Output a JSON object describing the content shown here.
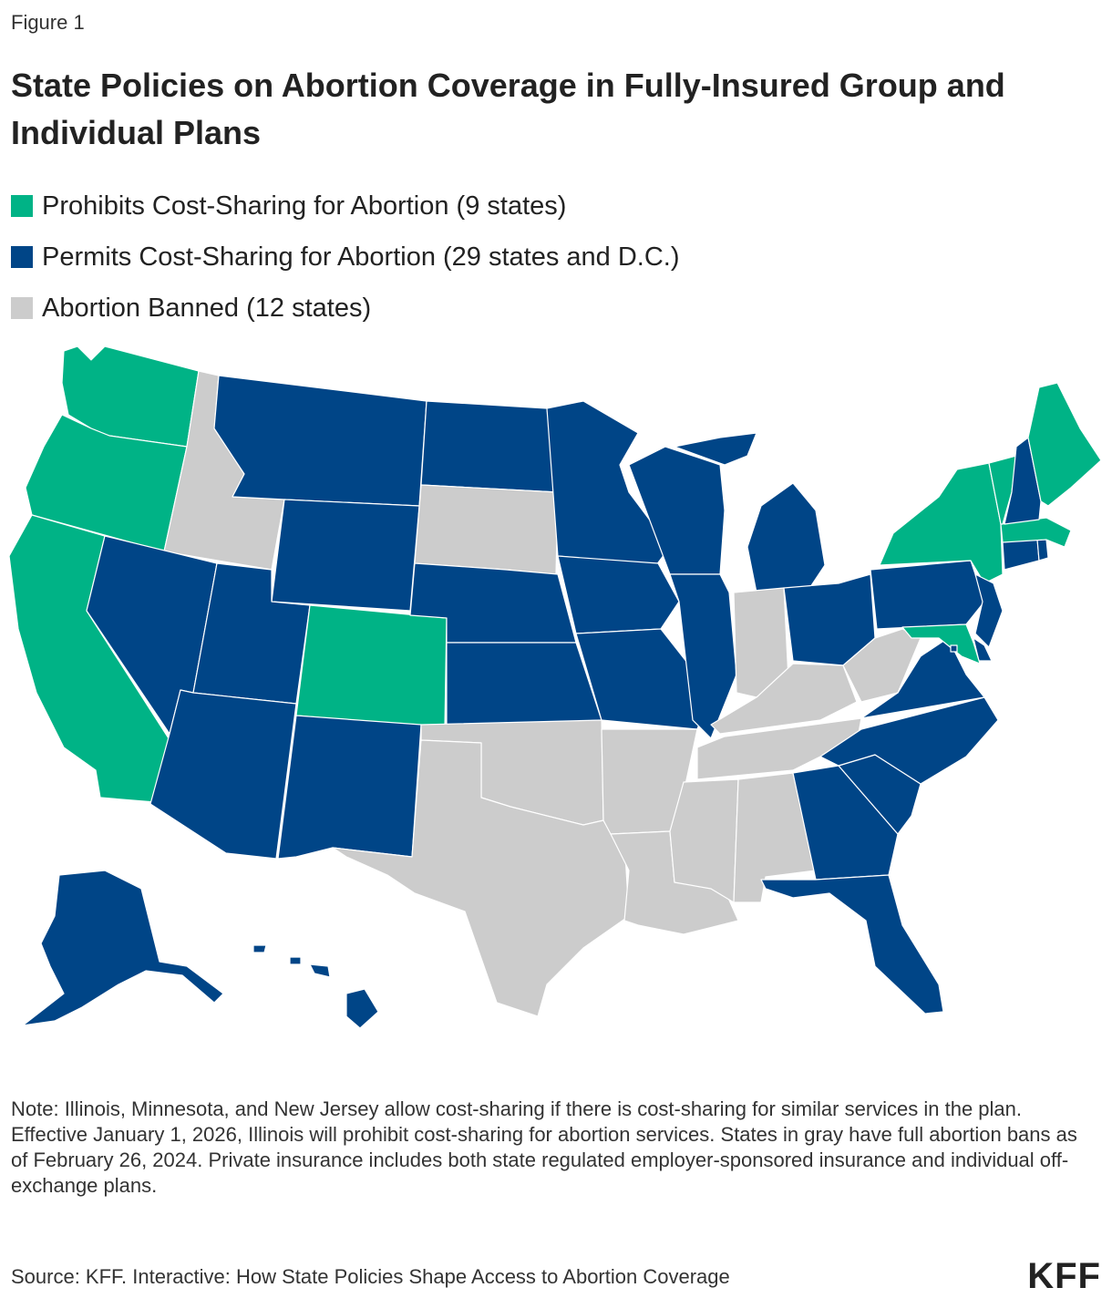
{
  "figure_label": "Figure 1",
  "title": "State Policies on Abortion Coverage in Fully-Insured Group and Individual Plans",
  "legend": [
    {
      "label": "Prohibits Cost-Sharing for Abortion (9 states)",
      "color": "#00b386",
      "key": "prohibits"
    },
    {
      "label": "Permits Cost-Sharing for Abortion (29 states and D.C.)",
      "color": "#004587",
      "key": "permits"
    },
    {
      "label": "Abortion Banned (12 states)",
      "color": "#cccccc",
      "key": "banned"
    }
  ],
  "states": {
    "prohibits": [
      "WA",
      "OR",
      "CA",
      "CO",
      "NY",
      "VT",
      "ME",
      "MA",
      "MD"
    ],
    "permits": [
      "AK",
      "AZ",
      "CT",
      "DE",
      "DC",
      "FL",
      "GA",
      "HI",
      "IL",
      "IA",
      "KS",
      "MI",
      "MN",
      "MO",
      "MT",
      "NE",
      "NV",
      "NH",
      "NJ",
      "NM",
      "NC",
      "ND",
      "OH",
      "PA",
      "RI",
      "SC",
      "UT",
      "VA",
      "WI",
      "WY"
    ],
    "banned": [
      "ID",
      "SD",
      "TX",
      "OK",
      "AR",
      "LA",
      "MS",
      "AL",
      "TN",
      "KY",
      "WV",
      "IN"
    ]
  },
  "note": "Note: Illinois, Minnesota, and New Jersey allow cost-sharing if there is cost-sharing for similar services in the plan. Effective January 1, 2026, Illinois will prohibit cost-sharing for abortion services. States in gray have full abortion bans as of February 26, 2024. Private insurance includes both state regulated employer-sponsored insurance and individual off-exchange plans.",
  "source": "Source: KFF. Interactive: How State Policies Shape Access to Abortion Coverage",
  "logo": "KFF"
}
